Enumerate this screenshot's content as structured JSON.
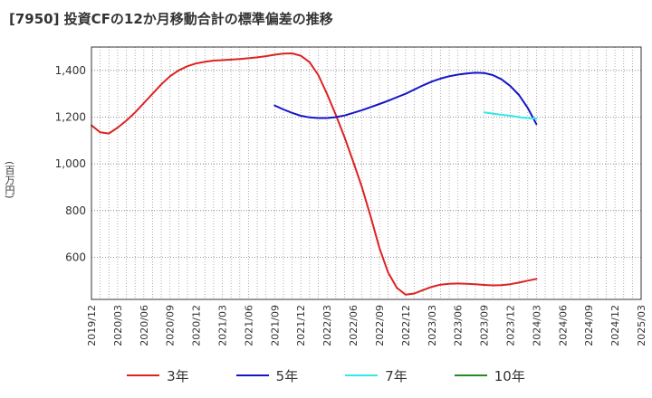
{
  "chart_data": {
    "type": "line",
    "title": "[7950]  投資CFの12か月移動合計の標準偏差の推移",
    "ylabel": "(百万円)",
    "xlabel": "",
    "ylim": [
      420,
      1500
    ],
    "xlim": [
      "2019/12",
      "2025/03"
    ],
    "y_ticks": [
      600,
      800,
      1000,
      1200,
      1400
    ],
    "y_tick_labels": [
      "600",
      "800",
      "1,000",
      "1,200",
      "1,400"
    ],
    "x_ticks": [
      "2019/12",
      "2020/03",
      "2020/06",
      "2020/09",
      "2020/12",
      "2021/03",
      "2021/06",
      "2021/09",
      "2021/12",
      "2022/03",
      "2022/06",
      "2022/09",
      "2022/12",
      "2023/03",
      "2023/06",
      "2023/09",
      "2023/12",
      "2024/03",
      "2024/06",
      "2024/09",
      "2024/12",
      "2025/03"
    ],
    "grid": true,
    "legend_position": "bottom",
    "series": [
      {
        "name": "3年",
        "color": "#dd2222",
        "points": [
          [
            "2019/12",
            1165
          ],
          [
            "2020/01",
            1135
          ],
          [
            "2020/02",
            1130
          ],
          [
            "2020/03",
            1155
          ],
          [
            "2020/04",
            1185
          ],
          [
            "2020/05",
            1220
          ],
          [
            "2020/06",
            1260
          ],
          [
            "2020/07",
            1300
          ],
          [
            "2020/08",
            1340
          ],
          [
            "2020/09",
            1375
          ],
          [
            "2020/10",
            1400
          ],
          [
            "2020/11",
            1418
          ],
          [
            "2020/12",
            1430
          ],
          [
            "2021/01",
            1437
          ],
          [
            "2021/02",
            1442
          ],
          [
            "2021/03",
            1444
          ],
          [
            "2021/04",
            1446
          ],
          [
            "2021/05",
            1449
          ],
          [
            "2021/06",
            1452
          ],
          [
            "2021/07",
            1456
          ],
          [
            "2021/08",
            1461
          ],
          [
            "2021/09",
            1467
          ],
          [
            "2021/10",
            1472
          ],
          [
            "2021/11",
            1473
          ],
          [
            "2021/12",
            1463
          ],
          [
            "2022/01",
            1435
          ],
          [
            "2022/02",
            1380
          ],
          [
            "2022/03",
            1300
          ],
          [
            "2022/04",
            1210
          ],
          [
            "2022/05",
            1115
          ],
          [
            "2022/06",
            1010
          ],
          [
            "2022/07",
            900
          ],
          [
            "2022/08",
            775
          ],
          [
            "2022/09",
            640
          ],
          [
            "2022/10",
            535
          ],
          [
            "2022/11",
            470
          ],
          [
            "2022/12",
            440
          ],
          [
            "2023/01",
            445
          ],
          [
            "2023/02",
            460
          ],
          [
            "2023/03",
            474
          ],
          [
            "2023/04",
            483
          ],
          [
            "2023/05",
            487
          ],
          [
            "2023/06",
            488
          ],
          [
            "2023/07",
            487
          ],
          [
            "2023/08",
            485
          ],
          [
            "2023/09",
            482
          ],
          [
            "2023/10",
            480
          ],
          [
            "2023/11",
            481
          ],
          [
            "2023/12",
            485
          ],
          [
            "2024/01",
            492
          ],
          [
            "2024/02",
            500
          ],
          [
            "2024/03",
            508
          ]
        ]
      },
      {
        "name": "5年",
        "color": "#1515c8",
        "points": [
          [
            "2021/09",
            1250
          ],
          [
            "2021/10",
            1233
          ],
          [
            "2021/11",
            1218
          ],
          [
            "2021/12",
            1206
          ],
          [
            "2022/01",
            1199
          ],
          [
            "2022/02",
            1196
          ],
          [
            "2022/03",
            1196
          ],
          [
            "2022/04",
            1200
          ],
          [
            "2022/05",
            1207
          ],
          [
            "2022/06",
            1218
          ],
          [
            "2022/07",
            1230
          ],
          [
            "2022/08",
            1243
          ],
          [
            "2022/09",
            1256
          ],
          [
            "2022/10",
            1270
          ],
          [
            "2022/11",
            1285
          ],
          [
            "2022/12",
            1300
          ],
          [
            "2023/01",
            1318
          ],
          [
            "2023/02",
            1336
          ],
          [
            "2023/03",
            1352
          ],
          [
            "2023/04",
            1365
          ],
          [
            "2023/05",
            1375
          ],
          [
            "2023/06",
            1382
          ],
          [
            "2023/07",
            1387
          ],
          [
            "2023/08",
            1390
          ],
          [
            "2023/09",
            1389
          ],
          [
            "2023/10",
            1380
          ],
          [
            "2023/11",
            1362
          ],
          [
            "2023/12",
            1333
          ],
          [
            "2024/01",
            1295
          ],
          [
            "2024/02",
            1240
          ],
          [
            "2024/03",
            1170
          ]
        ]
      },
      {
        "name": "7年",
        "color": "#33e8e8",
        "points": [
          [
            "2023/09",
            1220
          ],
          [
            "2023/10",
            1215
          ],
          [
            "2023/11",
            1210
          ],
          [
            "2023/12",
            1206
          ],
          [
            "2024/01",
            1200
          ],
          [
            "2024/02",
            1196
          ],
          [
            "2024/03",
            1193
          ]
        ]
      },
      {
        "name": "10年",
        "color": "#228b22",
        "points": []
      }
    ]
  }
}
